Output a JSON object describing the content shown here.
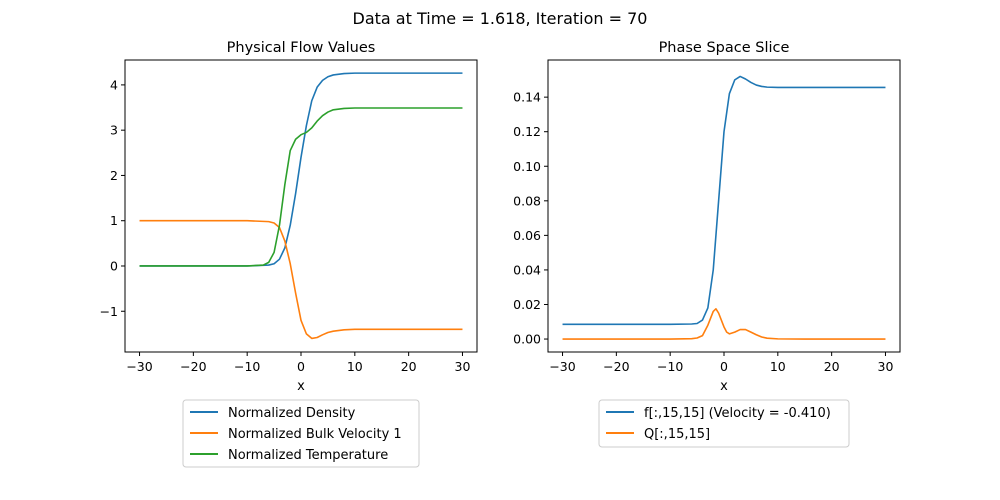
{
  "figure": {
    "suptitle": "Data at Time = 1.618, Iteration = 70"
  },
  "colors": {
    "blue": "#1f77b4",
    "orange": "#ff7f0e",
    "green": "#2ca02c"
  },
  "chart_data": [
    {
      "type": "line",
      "title": "Physical Flow Values",
      "xlabel": "x",
      "ylabel": "",
      "xlim": [
        -32.7,
        32.7
      ],
      "ylim": [
        -1.9,
        4.55
      ],
      "xticks": [
        -30,
        -20,
        -10,
        0,
        10,
        20,
        30
      ],
      "xtick_labels": [
        "−30",
        "−20",
        "−10",
        "0",
        "10",
        "20",
        "30"
      ],
      "yticks": [
        -1,
        0,
        1,
        2,
        3,
        4
      ],
      "ytick_labels": [
        "−1",
        "0",
        "1",
        "2",
        "3",
        "4"
      ],
      "grid": false,
      "legend_position": "below",
      "series": [
        {
          "name": "Normalized Density",
          "color": "#1f77b4",
          "x": [
            -30,
            -10,
            -6,
            -5,
            -4,
            -3,
            -2,
            -1,
            0,
            1,
            2,
            3,
            4,
            5,
            6,
            8,
            10,
            15,
            20,
            30
          ],
          "y": [
            0,
            0,
            0.02,
            0.05,
            0.15,
            0.4,
            0.9,
            1.6,
            2.4,
            3.1,
            3.65,
            3.95,
            4.1,
            4.18,
            4.22,
            4.25,
            4.26,
            4.26,
            4.26,
            4.26
          ]
        },
        {
          "name": "Normalized Bulk Velocity 1",
          "color": "#ff7f0e",
          "x": [
            -30,
            -10,
            -6,
            -5,
            -4,
            -3,
            -2,
            -1,
            0,
            1,
            2,
            3,
            4,
            5,
            6,
            8,
            10,
            15,
            20,
            30
          ],
          "y": [
            1.0,
            1.0,
            0.98,
            0.95,
            0.85,
            0.55,
            0.05,
            -0.6,
            -1.2,
            -1.5,
            -1.6,
            -1.58,
            -1.52,
            -1.47,
            -1.44,
            -1.41,
            -1.4,
            -1.4,
            -1.4,
            -1.4
          ]
        },
        {
          "name": "Normalized Temperature",
          "color": "#2ca02c",
          "x": [
            -30,
            -10,
            -7,
            -6,
            -5,
            -4,
            -3,
            -2,
            -1,
            0,
            1,
            2,
            3,
            4,
            5,
            6,
            8,
            10,
            15,
            20,
            30
          ],
          "y": [
            0,
            0,
            0.02,
            0.08,
            0.3,
            0.9,
            1.8,
            2.55,
            2.8,
            2.9,
            2.95,
            3.05,
            3.2,
            3.32,
            3.4,
            3.45,
            3.48,
            3.49,
            3.49,
            3.49,
            3.49
          ]
        }
      ]
    },
    {
      "type": "line",
      "title": "Phase Space Slice",
      "xlabel": "x",
      "ylabel": "",
      "xlim": [
        -32.7,
        32.7
      ],
      "ylim": [
        -0.0075,
        0.1615
      ],
      "xticks": [
        -30,
        -20,
        -10,
        0,
        10,
        20,
        30
      ],
      "xtick_labels": [
        "−30",
        "−20",
        "−10",
        "0",
        "10",
        "20",
        "30"
      ],
      "yticks": [
        0.0,
        0.02,
        0.04,
        0.06,
        0.08,
        0.1,
        0.12,
        0.14
      ],
      "ytick_labels": [
        "0.00",
        "0.02",
        "0.04",
        "0.06",
        "0.08",
        "0.10",
        "0.12",
        "0.14"
      ],
      "grid": false,
      "legend_position": "below",
      "series": [
        {
          "name": "f[:,15,15] (Velocity = -0.410)",
          "color": "#1f77b4",
          "x": [
            -30,
            -10,
            -6,
            -5,
            -4,
            -3,
            -2,
            -1,
            0,
            1,
            2,
            3,
            4,
            5,
            6,
            7,
            8,
            10,
            15,
            20,
            30
          ],
          "y": [
            0.0085,
            0.0085,
            0.0087,
            0.009,
            0.011,
            0.018,
            0.04,
            0.08,
            0.12,
            0.142,
            0.15,
            0.152,
            0.1505,
            0.1485,
            0.147,
            0.1462,
            0.1458,
            0.1456,
            0.1456,
            0.1456,
            0.1456
          ]
        },
        {
          "name": "Q[:,15,15]",
          "color": "#ff7f0e",
          "x": [
            -30,
            -10,
            -6,
            -5,
            -4,
            -3,
            -2,
            -1.5,
            -1,
            0,
            0.5,
            1,
            2,
            3,
            4,
            5,
            6,
            7,
            8,
            10,
            15,
            20,
            30
          ],
          "y": [
            0,
            0,
            0.0002,
            0.0006,
            0.002,
            0.008,
            0.016,
            0.0175,
            0.015,
            0.007,
            0.004,
            0.003,
            0.004,
            0.0055,
            0.0055,
            0.004,
            0.0025,
            0.0012,
            0.0005,
            0.0001,
            0,
            0,
            0
          ]
        }
      ]
    }
  ]
}
